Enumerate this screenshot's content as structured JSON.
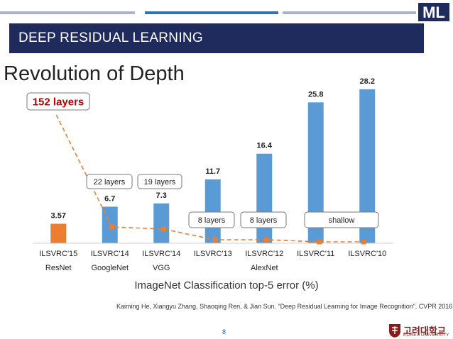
{
  "header": {
    "title": "DEEP RESIDUAL LEARNING"
  },
  "slide": {
    "title": "Revolution of Depth",
    "caption": "ImageNet Classification top-5 error (%)",
    "citation": "Kaiming He, Xiangyu Zhang, Shaoqing  Ren, & Jian Sun.  “Deep Residual Learning for Image Recognition”. CVPR 2016.",
    "page_number": "8"
  },
  "logo": {
    "text": "ML"
  },
  "university": {
    "korean": "고려대학교",
    "english": "KOREA UNIVERSITY"
  },
  "colors": {
    "header_bg": "#1f2b5c",
    "bar_blue": "#5b9bd5",
    "bar_orange": "#ed7d31",
    "dashed_line": "#ed7d31",
    "highlight_text": "#c00000",
    "top_bar_gray": "#aab4c4",
    "top_bar_blue": "#2e74b5"
  },
  "chart_data": {
    "type": "bar",
    "title": "",
    "xlabel": "ImageNet Classification top-5 error (%)",
    "ylabel": "",
    "ylim": [
      0,
      30
    ],
    "categories": [
      {
        "line1": "ILSVRC'15",
        "line2": "ResNet"
      },
      {
        "line1": "ILSVRC'14",
        "line2": "GoogleNet"
      },
      {
        "line1": "ILSVRC'14",
        "line2": "VGG"
      },
      {
        "line1": "ILSVRC'13",
        "line2": ""
      },
      {
        "line1": "ILSVRC'12",
        "line2": "AlexNet"
      },
      {
        "line1": "ILSVRC'11",
        "line2": ""
      },
      {
        "line1": "ILSVRC'10",
        "line2": ""
      }
    ],
    "values": [
      3.57,
      6.7,
      7.3,
      11.7,
      16.4,
      25.8,
      28.2
    ],
    "value_labels": [
      "3.57",
      "6.7",
      "7.3",
      "11.7",
      "16.4",
      "25.8",
      "28.2"
    ],
    "highlight_index": 0,
    "depth_series": {
      "name": "layers",
      "points": [
        152,
        22,
        19,
        8,
        8,
        0,
        0
      ],
      "annotations": [
        {
          "text": "152 layers",
          "applies_to": [
            0
          ],
          "highlight": true
        },
        {
          "text": "22 layers",
          "applies_to": [
            1
          ]
        },
        {
          "text": "19 layers",
          "applies_to": [
            2
          ]
        },
        {
          "text": "8 layers",
          "applies_to": [
            3
          ]
        },
        {
          "text": "8 layers",
          "applies_to": [
            4
          ]
        },
        {
          "text": "shallow",
          "applies_to": [
            5,
            6
          ]
        }
      ]
    }
  }
}
